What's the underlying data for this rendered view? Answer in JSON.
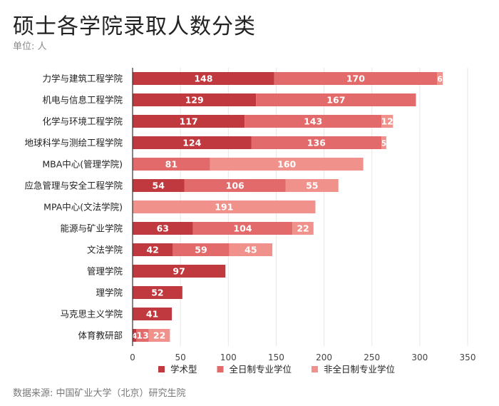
{
  "title": "硕士各学院录取人数分类",
  "subtitle": "单位: 人",
  "source": "数据来源: 中国矿业大学（北京）研究生院",
  "colors": {
    "academic": "#c0393e",
    "fulltime": "#e36a6a",
    "parttime": "#f0928b",
    "grid": "#e6e6e6",
    "axis": "#333333"
  },
  "chart_data": {
    "type": "bar",
    "orientation": "horizontal",
    "stacked": true,
    "title": "硕士各学院录取人数分类",
    "xlabel": "",
    "ylabel": "",
    "xlim": [
      0,
      350
    ],
    "xticks": [
      0,
      50,
      100,
      150,
      200,
      250,
      300,
      350
    ],
    "grid": true,
    "legend": "bottom",
    "categories": [
      "力学与建筑工程学院",
      "机电与信息工程学院",
      "化学与环境工程学院",
      "地球科学与测绘工程学院",
      "MBA中心(管理学院)",
      "应急管理与安全工程学院",
      "MPA中心(文法学院)",
      "能源与矿业学院",
      "文法学院",
      "管理学院",
      "理学院",
      "马克思主义学院",
      "体育教研部"
    ],
    "series": [
      {
        "name": "学术型",
        "key": "academic",
        "values": [
          148,
          129,
          117,
          124,
          0,
          54,
          0,
          63,
          42,
          97,
          52,
          41,
          4
        ]
      },
      {
        "name": "全日制专业学位",
        "key": "fulltime",
        "values": [
          170,
          167,
          143,
          136,
          81,
          106,
          0,
          104,
          59,
          0,
          0,
          0,
          13
        ]
      },
      {
        "name": "非全日制专业学位",
        "key": "parttime",
        "values": [
          6,
          0,
          12,
          5,
          160,
          55,
          191,
          22,
          45,
          0,
          0,
          0,
          22
        ]
      }
    ]
  }
}
